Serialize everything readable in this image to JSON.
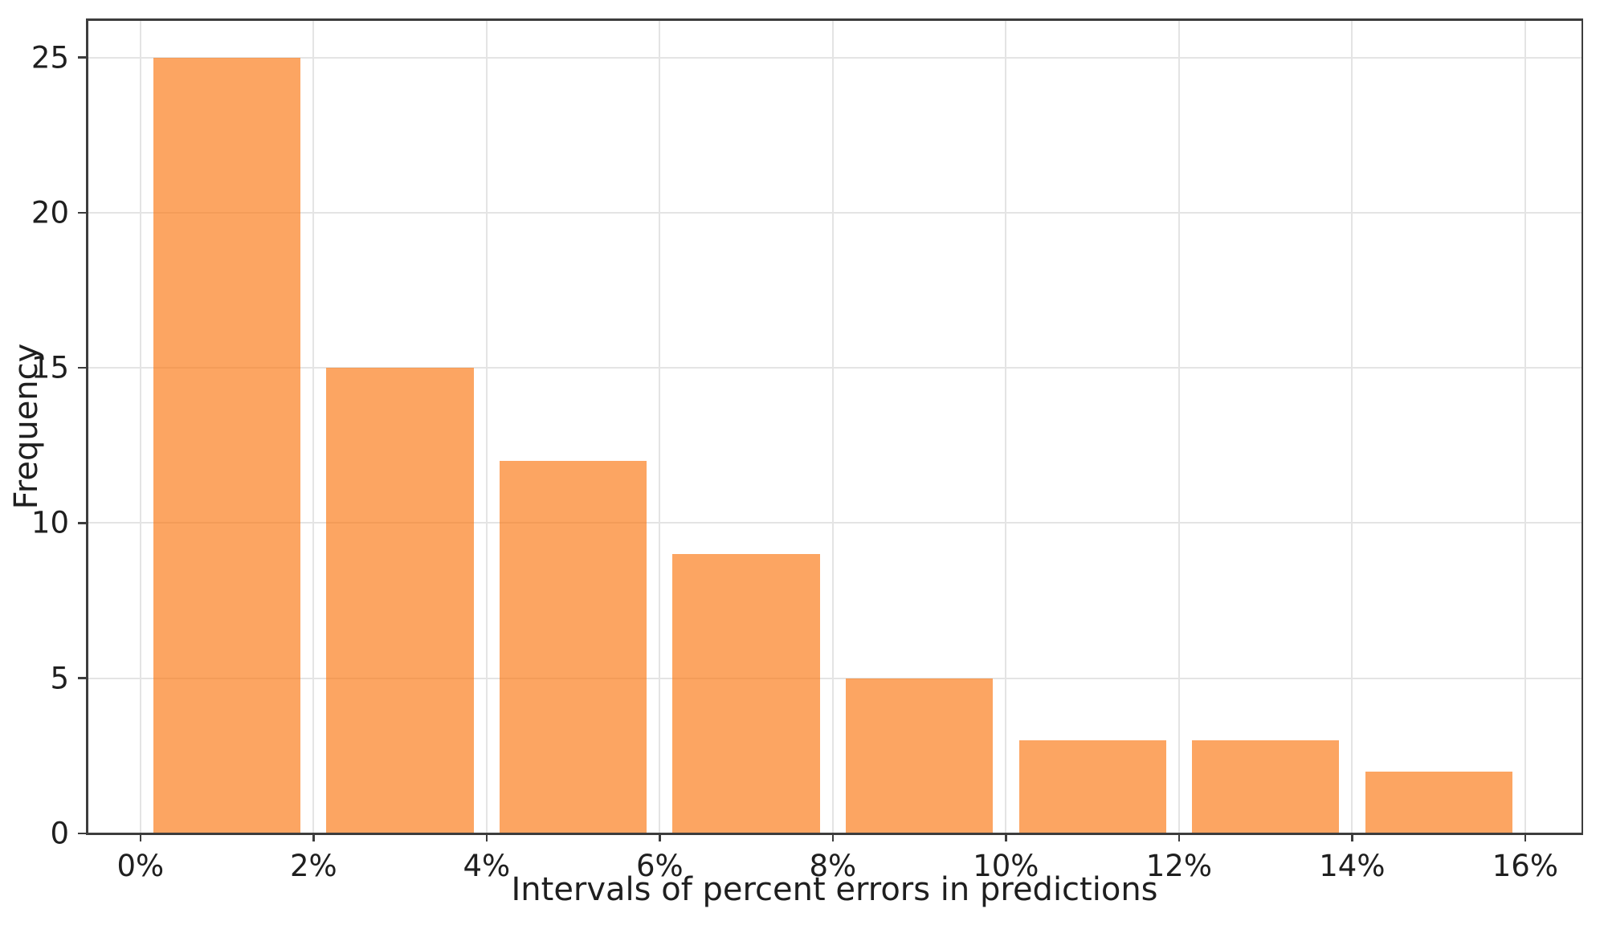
{
  "chart_data": {
    "type": "bar",
    "subtype": "histogram",
    "title": "",
    "xlabel": "Intervals of percent errors in predictions",
    "ylabel": "Frequency",
    "bin_edges_percent": [
      0,
      2,
      4,
      6,
      8,
      10,
      12,
      14,
      16
    ],
    "categories": [
      "0-2%",
      "2-4%",
      "4-6%",
      "6-8%",
      "8-10%",
      "10-12%",
      "12-14%",
      "14-16%"
    ],
    "values": [
      25,
      15,
      12,
      9,
      5,
      3,
      3,
      2
    ],
    "xtick_values": [
      0,
      2,
      4,
      6,
      8,
      10,
      12,
      14,
      16
    ],
    "xtick_labels": [
      "0%",
      "2%",
      "4%",
      "6%",
      "8%",
      "10%",
      "12%",
      "14%",
      "16%"
    ],
    "ytick_values": [
      0,
      5,
      10,
      15,
      20,
      25
    ],
    "ytick_labels": [
      "0",
      "5",
      "10",
      "15",
      "20",
      "25"
    ],
    "xlim": [
      -0.62,
      16.66
    ],
    "ylim": [
      0,
      26.23
    ],
    "bar_width_fraction": 0.85,
    "grid": true,
    "legend_position": "none"
  },
  "colors": {
    "bar_fill_rgba": "rgba(251,122,24,0.68)",
    "bar_apparent_hex": "#FCA462",
    "gridline": "#e4e4e4",
    "axis_spine": "#3d3d3d",
    "text": "#1f1f1f",
    "background": "#ffffff"
  }
}
